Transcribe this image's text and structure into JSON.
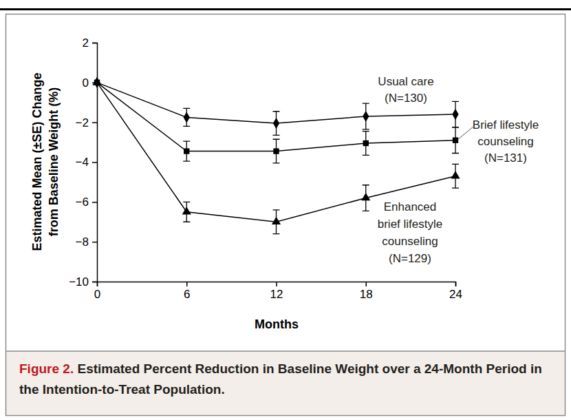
{
  "chart_data": {
    "type": "line",
    "figure_label": "Figure 2.",
    "title": "Estimated Percent Reduction in Baseline Weight over a 24-Month Period in the Intention-to-Treat Population.",
    "x_label": "Months",
    "y_label": [
      "Estimated Mean (±SE) Change",
      "from Baseline Weight (%)"
    ],
    "x": [
      0,
      6,
      12,
      18,
      24
    ],
    "xlim": [
      0,
      24
    ],
    "xticks": [
      0,
      6,
      12,
      18,
      24
    ],
    "ylim": [
      -10,
      2
    ],
    "yticks": [
      {
        "value": -10,
        "label": "−10"
      },
      {
        "value": -8,
        "label": "−8"
      },
      {
        "value": -6,
        "label": "−6"
      },
      {
        "value": -4,
        "label": "−4"
      },
      {
        "value": -2,
        "label": "−2"
      },
      0,
      2
    ],
    "series": [
      {
        "label": [
          "Usual care",
          "(N=130)"
        ],
        "color": "#000000",
        "marker": "diamond",
        "line_style": "solid",
        "values": [
          0,
          -1.75,
          -2.05,
          -1.7,
          -1.6
        ],
        "errors": [
          null,
          0.45,
          0.6,
          0.65,
          0.65
        ]
      },
      {
        "label": [
          "Brief lifestyle",
          "counseling",
          "(N=131)"
        ],
        "color": "#000000",
        "marker": "square",
        "line_style": "solid",
        "values": [
          0,
          -3.45,
          -3.45,
          -3.05,
          -2.9
        ],
        "errors": [
          null,
          0.5,
          0.6,
          0.6,
          0.65
        ]
      },
      {
        "label": [
          "Enhanced",
          "brief lifestyle",
          "counseling",
          "(N=129)"
        ],
        "color": "#000000",
        "marker": "triangle",
        "line_style": "solid",
        "values": [
          0,
          -6.5,
          -7.0,
          -5.8,
          -4.7
        ],
        "errors": [
          null,
          0.5,
          0.6,
          0.65,
          0.6
        ]
      }
    ]
  }
}
